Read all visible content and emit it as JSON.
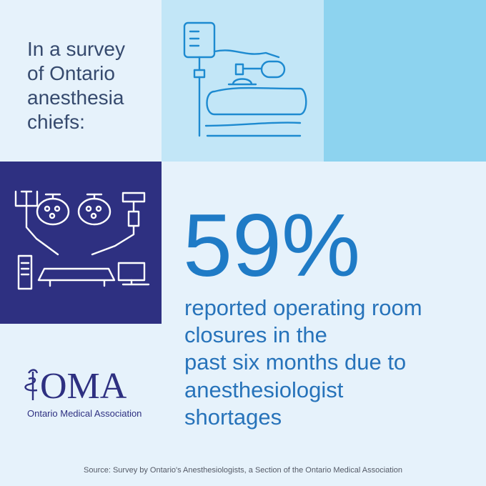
{
  "intro": {
    "lines": [
      "In a survey",
      "of Ontario",
      "anesthesia",
      "chiefs:"
    ]
  },
  "stat": {
    "label": "59%",
    "lines": [
      "reported operating room",
      "closures in the",
      "past six months due to",
      "anesthesiologist",
      "shortages"
    ]
  },
  "logo": {
    "mark": "OMA",
    "name": "Ontario Medical Association"
  },
  "source": "Source: Survey by Ontario's Anesthesiologists, a Section of the Ontario Medical Association"
}
